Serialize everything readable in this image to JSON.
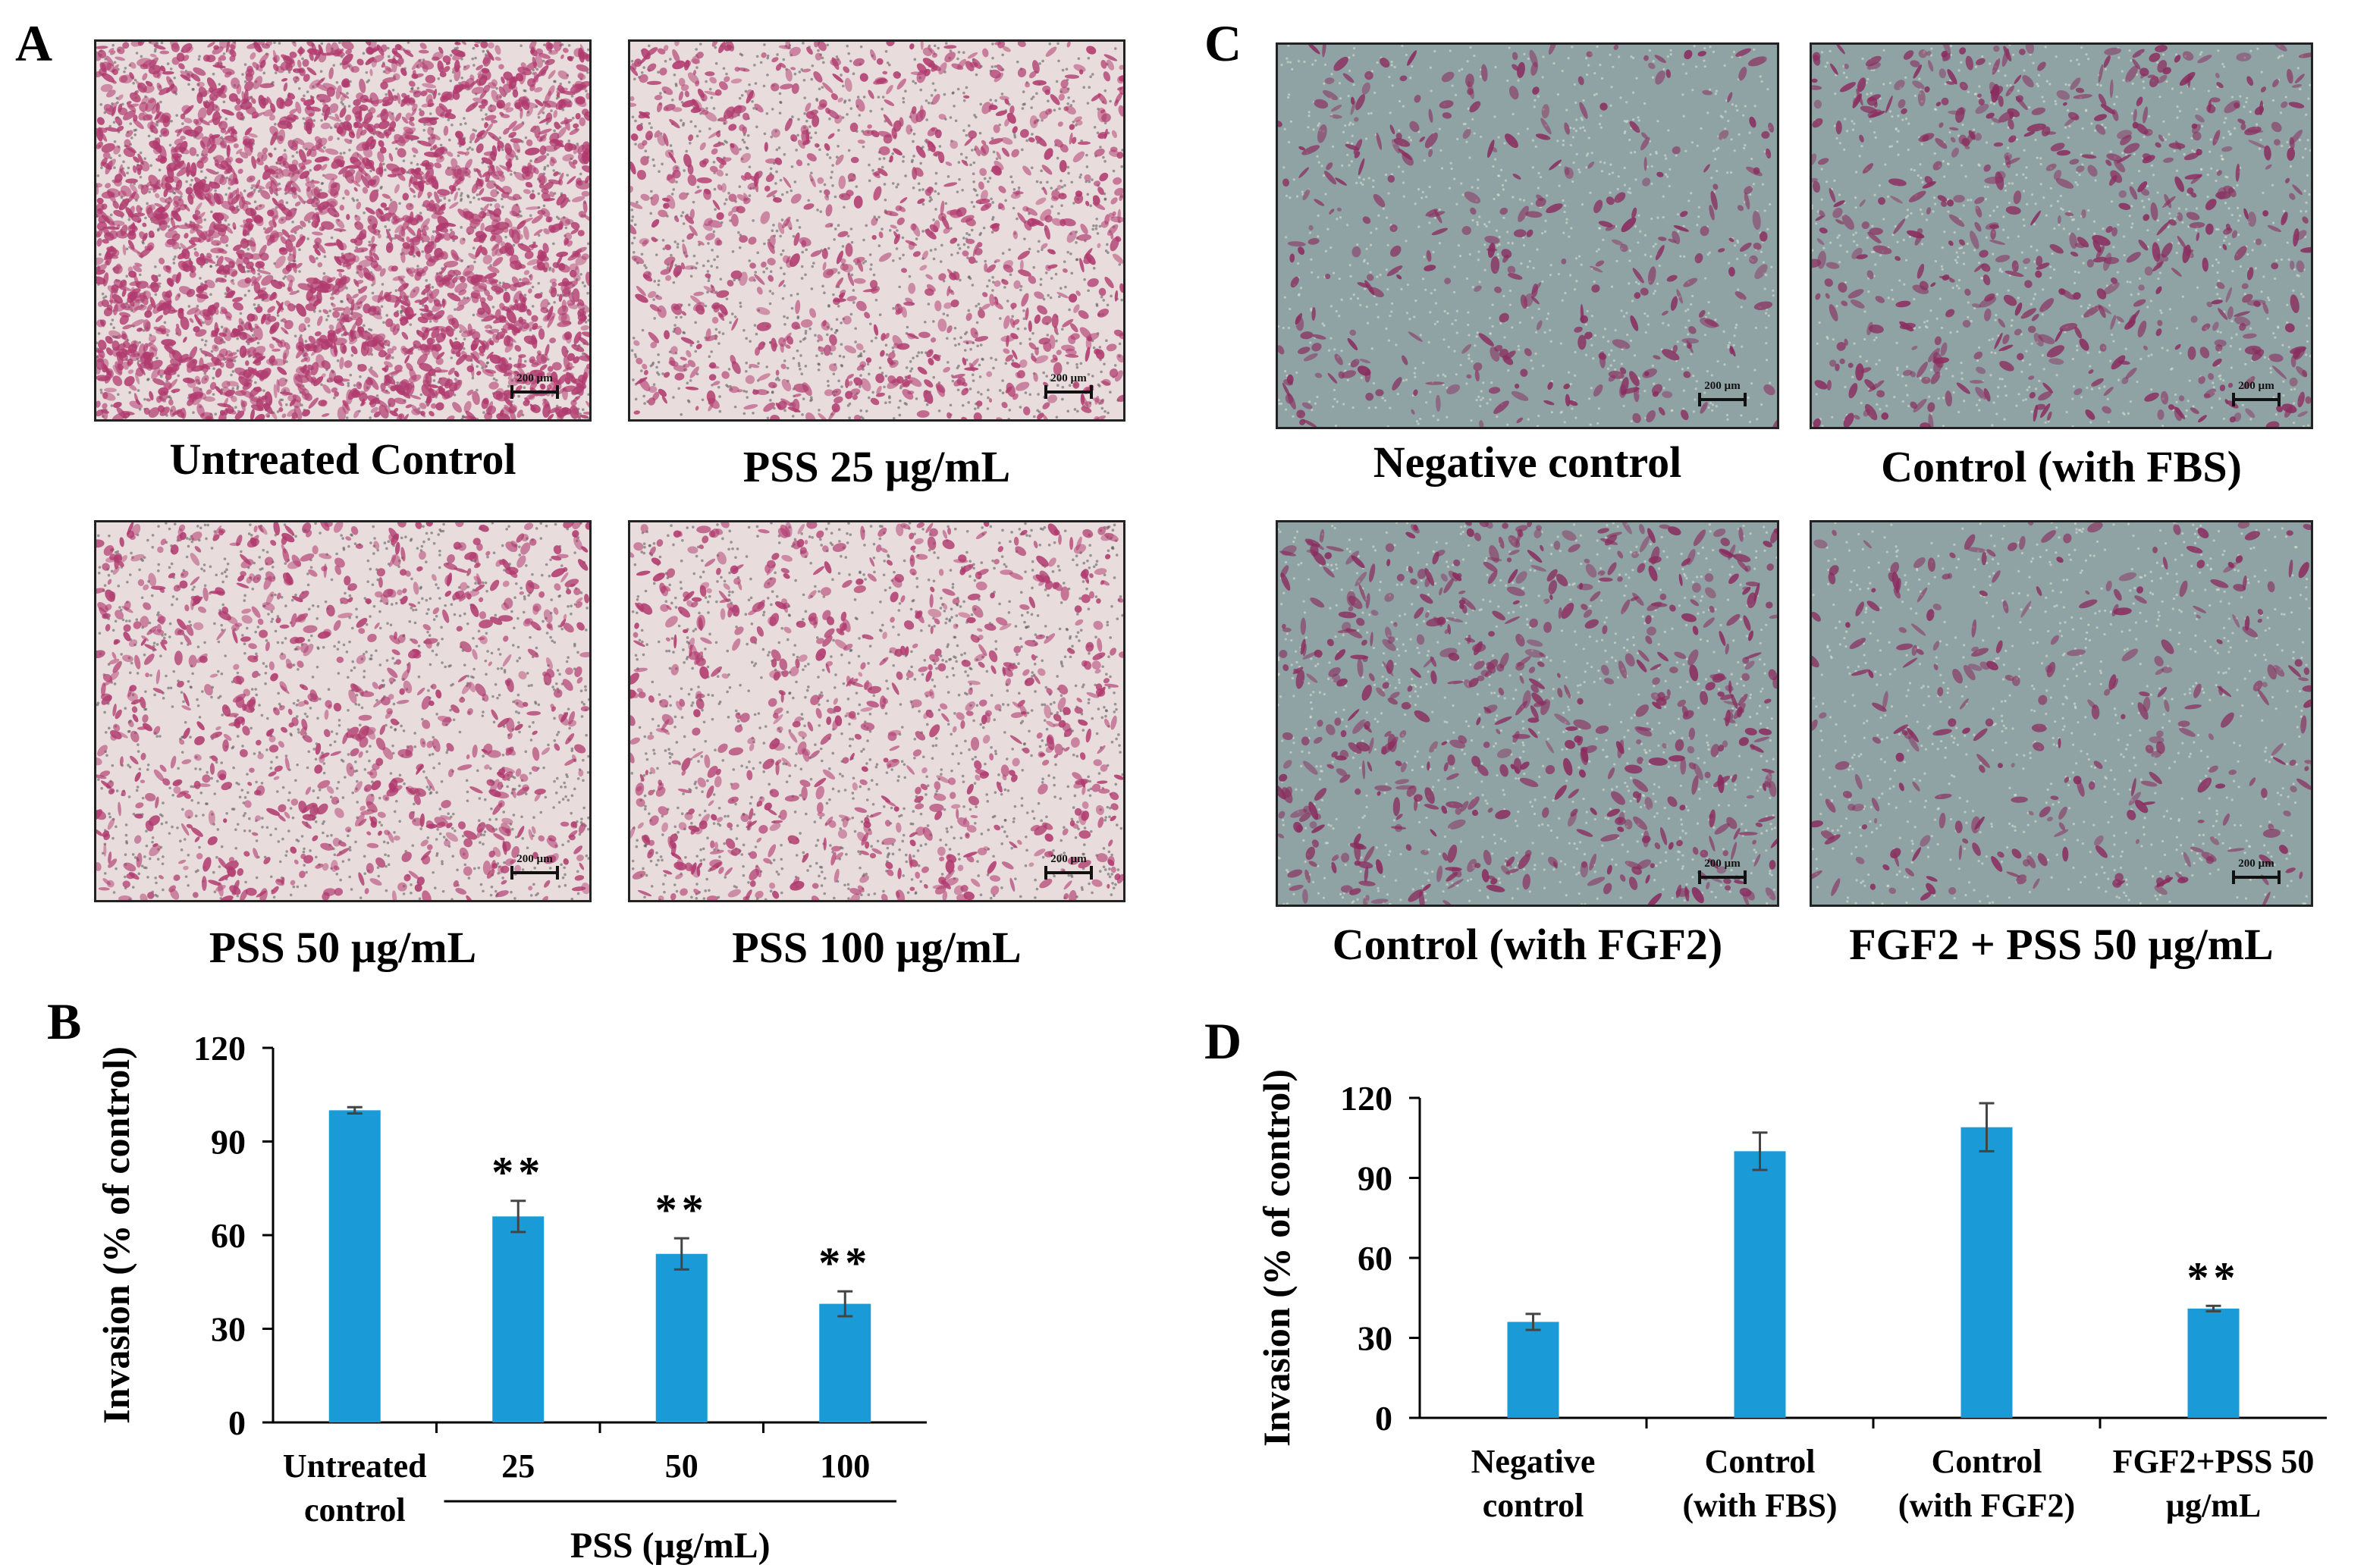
{
  "panels": {
    "a": "A",
    "b": "B",
    "c": "C",
    "d": "D"
  },
  "scale_bar_label": "200 µm",
  "panel_a": {
    "captions": [
      "Untreated Control",
      "PSS 25 µg/mL",
      "PSS 50 µg/mL",
      "PSS 100 µg/mL"
    ]
  },
  "panel_c": {
    "captions": [
      "Negative control",
      "Control (with FBS)",
      "Control (with FGF2)",
      "FGF2 + PSS 50 µg/mL"
    ]
  },
  "colors": {
    "bar": "#1a9bd7",
    "cell_stain_light": "#b03a6e",
    "cell_stain_dark": "#8a2c5e"
  },
  "chart_data": [
    {
      "type": "bar",
      "ylabel": "Invasion (% of control)",
      "ylim": [
        0,
        120
      ],
      "yticks": [
        0,
        30,
        60,
        90,
        120
      ],
      "categories": [
        [
          "Untreated",
          "control"
        ],
        [
          "25"
        ],
        [
          "50"
        ],
        [
          "100"
        ]
      ],
      "values": [
        100,
        66,
        54,
        38
      ],
      "errors": [
        1,
        5,
        5,
        4
      ],
      "annotations": [
        "",
        "**",
        "**",
        "**"
      ],
      "group_label": "PSS (µg/mL)",
      "grid": false
    },
    {
      "type": "bar",
      "ylabel": "Invasion (% of control)",
      "ylim": [
        0,
        120
      ],
      "yticks": [
        0,
        30,
        60,
        90,
        120
      ],
      "categories": [
        [
          "Negative",
          "control"
        ],
        [
          "Control",
          "(with FBS)"
        ],
        [
          "Control",
          "(with FGF2)"
        ],
        [
          "FGF2+PSS 50",
          "µg/mL"
        ]
      ],
      "values": [
        36,
        100,
        109,
        41
      ],
      "errors": [
        3,
        7,
        9,
        1
      ],
      "annotations": [
        "",
        "",
        "",
        "**"
      ],
      "grid": false
    }
  ]
}
